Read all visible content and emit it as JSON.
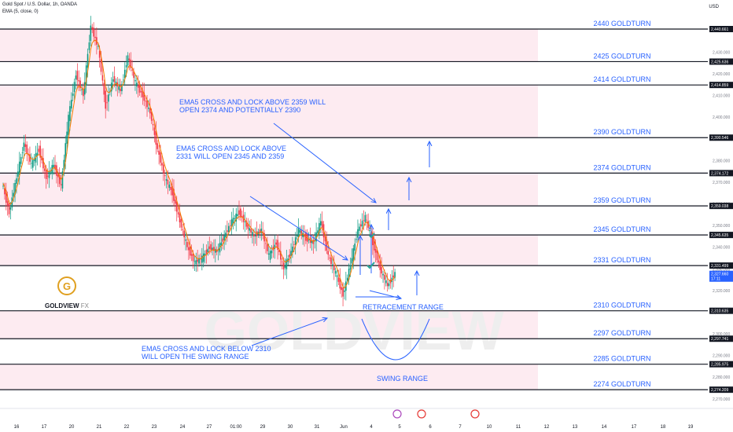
{
  "header": {
    "title": "Gold Spot / U.S. Dollar, 1h, OANDA",
    "indicator": "EMA (5, close, 0)",
    "currency": "USD"
  },
  "logo": {
    "brand": "GOLDVIEW",
    "suffix": "FX",
    "glyph": "G"
  },
  "colors": {
    "level_line": "#131722",
    "zone_fill": "#fce4ec",
    "label": "#2962ff",
    "ema": "#f57c00",
    "up_candle": "#089981",
    "down_candle": "#f23645",
    "check": "#26a69a"
  },
  "chart_data": {
    "type": "candlestick",
    "ylim": [
      2265,
      2448
    ],
    "y_ticks": [
      "2,270.000",
      "2,280.000",
      "2,290.000",
      "2,300.000",
      "2,310.000",
      "2,320.000",
      "2,330.000",
      "2,340.000",
      "2,350.000",
      "2,360.000",
      "2,370.000",
      "2,380.000",
      "2,390.000",
      "2,400.000",
      "2,410.000",
      "2,420.000",
      "2,430.000"
    ],
    "x_ticks": [
      "16",
      "17",
      "20",
      "21",
      "22",
      "23",
      "24",
      "27",
      "01:00",
      "29",
      "30",
      "31",
      "Jun",
      "4",
      "5",
      "6",
      "7",
      "10",
      "11",
      "12",
      "13",
      "14",
      "17",
      "18",
      "19"
    ],
    "levels": [
      {
        "value": 2440.661,
        "tag": "2,440.661",
        "label": "2440 GOLDTURN"
      },
      {
        "value": 2425.636,
        "tag": "2,425.636",
        "label": "2425 GOLDTURN"
      },
      {
        "value": 2414.859,
        "tag": "2,414.859",
        "label": "2414 GOLDTURN"
      },
      {
        "value": 2390.546,
        "tag": "2,390.546",
        "label": "2390 GOLDTURN"
      },
      {
        "value": 2374.172,
        "tag": "2,374.172",
        "label": "2374 GOLDTURN"
      },
      {
        "value": 2359.038,
        "tag": "2,359.038",
        "label": "2359 GOLDTURN"
      },
      {
        "value": 2345.635,
        "tag": "2,345.635",
        "label": "2345 GOLDTURN"
      },
      {
        "value": 2331.499,
        "tag": "2,331.499",
        "label": "2331 GOLDTURN"
      },
      {
        "value": 2310.635,
        "tag": "2,310.635",
        "label": "2310 GOLDTURN"
      },
      {
        "value": 2297.741,
        "tag": "2,297.741",
        "label": "2297 GOLDTURN"
      },
      {
        "value": 2285.975,
        "tag": "2,285.975",
        "label": "2285 GOLDTURN"
      },
      {
        "value": 2274.209,
        "tag": "2,274.209",
        "label": "2274 GOLDTURN"
      }
    ],
    "last_price": {
      "value": 2327.66,
      "tag": "2,327.660",
      "countdown": "17:11"
    },
    "annotations": [
      {
        "id": "ann-2359",
        "lines": [
          "EMA5 CROSS AND LOCK ABOVE 2359 WILL",
          "OPEN 2374 AND POTENTIALLY 2390"
        ]
      },
      {
        "id": "ann-2331",
        "lines": [
          "EMA5 CROSS AND LOCK ABOVE",
          "2331 WILL OPEN 2345 AND 2359"
        ]
      },
      {
        "id": "ann-2310",
        "lines": [
          "EMA5 CROSS AND LOCK BELOW 2310",
          "WILL OPEN THE SWING RANGE"
        ]
      },
      {
        "id": "ann-retrace",
        "lines": [
          "RETRACEMENT RANGE"
        ]
      },
      {
        "id": "ann-swing",
        "lines": [
          "SWING RANGE"
        ]
      }
    ],
    "price_path": [
      2370,
      2356,
      2372,
      2388,
      2378,
      2385,
      2372,
      2378,
      2368,
      2400,
      2420,
      2410,
      2442,
      2432,
      2405,
      2418,
      2412,
      2428,
      2416,
      2410,
      2402,
      2385,
      2372,
      2365,
      2352,
      2340,
      2333,
      2335,
      2340,
      2338,
      2345,
      2352,
      2356,
      2350,
      2345,
      2348,
      2336,
      2342,
      2330,
      2338,
      2348,
      2344,
      2342,
      2352,
      2336,
      2328,
      2318,
      2332,
      2348,
      2354,
      2342,
      2330,
      2322,
      2328
    ]
  }
}
